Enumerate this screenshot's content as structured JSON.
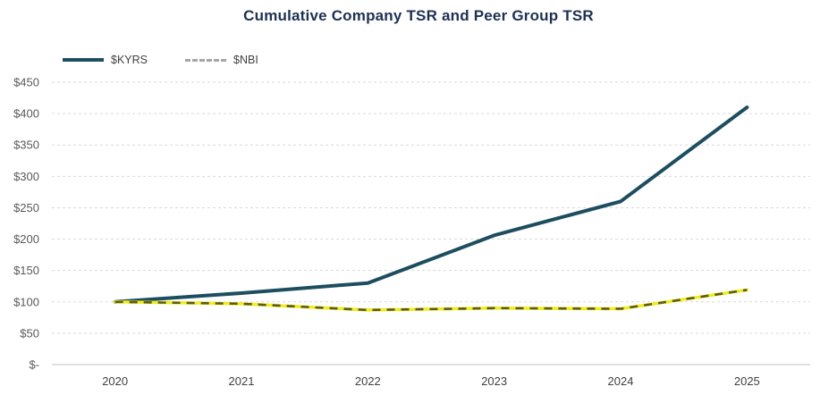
{
  "chart_data": {
    "type": "line",
    "title": "Cumulative Company TSR and Peer Group TSR",
    "categories": [
      "2020",
      "2021",
      "2022",
      "2023",
      "2024",
      "2025"
    ],
    "series": [
      {
        "name": "$KYRS",
        "values": [
          100,
          114,
          130,
          206,
          260,
          410
        ],
        "color": "#1d4e5f",
        "line_style": "solid"
      },
      {
        "name": "$NBI",
        "values": [
          100,
          97,
          87,
          90,
          89,
          119
        ],
        "color": "#a6a6a6",
        "line_style": "dashed",
        "plot_base_color": "#f1ec1f",
        "plot_dash_color": "#5d5c16"
      }
    ],
    "ylim": [
      0,
      450
    ],
    "ytick_step": 50,
    "ytick_labels": [
      "$-",
      "$50",
      "$100",
      "$150",
      "$200",
      "$250",
      "$300",
      "$350",
      "$400",
      "$450"
    ],
    "xlabel": "",
    "ylabel": "",
    "grid": "horizontal-dashed",
    "legend_position": "top-left"
  }
}
